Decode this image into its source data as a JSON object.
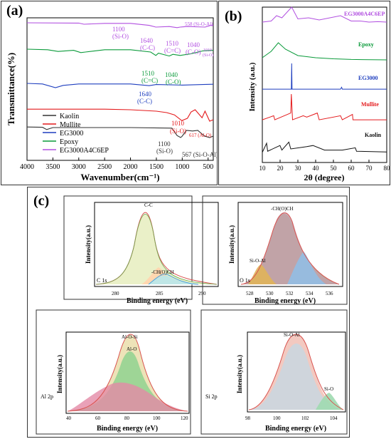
{
  "panel_a": {
    "label": "(a)",
    "chart_data": {
      "type": "line",
      "xlabel": "Wavenumber(cm⁻¹)",
      "ylabel": "Transmittance(%)",
      "xlim": [
        4000,
        400
      ],
      "x_ticks": [
        "4000",
        "3500",
        "3000",
        "2500",
        "2000",
        "1500",
        "1000",
        "500"
      ],
      "series": [
        {
          "name": "Kaolin",
          "color": "#333333",
          "points": [
            [
              4000,
              0.92
            ],
            [
              3700,
              0.91
            ],
            [
              3620,
              0.83
            ],
            [
              3500,
              0.9
            ],
            [
              2000,
              0.9
            ],
            [
              1200,
              0.88
            ],
            [
              1100,
              0.62
            ],
            [
              1030,
              0.55
            ],
            [
              1000,
              0.6
            ],
            [
              920,
              0.8
            ],
            [
              800,
              0.78
            ],
            [
              700,
              0.8
            ],
            [
              567,
              0.6
            ],
            [
              470,
              0.55
            ],
            [
              400,
              0.6
            ]
          ]
        },
        {
          "name": "Mullite",
          "color": "#e41a1c",
          "points": [
            [
              4000,
              0.92
            ],
            [
              2500,
              0.92
            ],
            [
              2000,
              0.9
            ],
            [
              1500,
              0.85
            ],
            [
              1300,
              0.8
            ],
            [
              1150,
              0.72
            ],
            [
              1010,
              0.52
            ],
            [
              900,
              0.6
            ],
            [
              830,
              0.82
            ],
            [
              750,
              0.9
            ],
            [
              617,
              0.62
            ],
            [
              560,
              0.85
            ],
            [
              470,
              0.5
            ],
            [
              400,
              0.55
            ]
          ]
        },
        {
          "name": "EG3000",
          "color": "#1f3fbf",
          "points": [
            [
              4000,
              0.9
            ],
            [
              3700,
              0.88
            ],
            [
              3450,
              0.75
            ],
            [
              3300,
              0.83
            ],
            [
              3000,
              0.88
            ],
            [
              2000,
              0.88
            ],
            [
              1640,
              0.82
            ],
            [
              1500,
              0.86
            ],
            [
              1000,
              0.84
            ],
            [
              600,
              0.86
            ],
            [
              400,
              0.87
            ]
          ]
        },
        {
          "name": "Epoxy",
          "color": "#0a9a3a",
          "points": [
            [
              4000,
              0.9
            ],
            [
              3600,
              0.88
            ],
            [
              3400,
              0.82
            ],
            [
              3100,
              0.86
            ],
            [
              2960,
              0.78
            ],
            [
              2870,
              0.8
            ],
            [
              2500,
              0.88
            ],
            [
              2000,
              0.88
            ],
            [
              1610,
              0.8
            ],
            [
              1510,
              0.68
            ],
            [
              1460,
              0.76
            ],
            [
              1250,
              0.66
            ],
            [
              1180,
              0.72
            ],
            [
              1040,
              0.68
            ],
            [
              830,
              0.74
            ],
            [
              600,
              0.84
            ],
            [
              400,
              0.86
            ]
          ]
        },
        {
          "name": "EG3000A4C6EP",
          "color": "#b14fe0",
          "points": [
            [
              4000,
              0.95
            ],
            [
              3000,
              0.94
            ],
            [
              2900,
              0.9
            ],
            [
              2500,
              0.93
            ],
            [
              2000,
              0.93
            ],
            [
              1640,
              0.86
            ],
            [
              1510,
              0.8
            ],
            [
              1250,
              0.82
            ],
            [
              1100,
              0.78
            ],
            [
              1040,
              0.8
            ],
            [
              900,
              0.82
            ],
            [
              558,
              0.8
            ],
            [
              450,
              0.86
            ],
            [
              400,
              0.87
            ]
          ]
        }
      ],
      "annotations": [
        "1100",
        "(Si-O)",
        "1640",
        "(C-C)",
        "1510",
        "(C=C)",
        "1040",
        "(C-O)",
        "558 (Si-O-Al)",
        "1010",
        "(Si-O)",
        "1510",
        "(C=C)",
        "1040",
        "(C-O)",
        "1640",
        "(C-C)",
        "1010",
        "(Si-O)",
        "617 (Al-O)",
        "1100",
        "(Si-O)",
        "567 (Si-O-Al)"
      ]
    }
  },
  "panel_b": {
    "label": "(b)",
    "chart_data": {
      "type": "line",
      "xlabel": "2θ (degree)",
      "ylabel": "Intensity (a.u.)",
      "xlim": [
        10,
        80
      ],
      "x_ticks": [
        "10",
        "20",
        "30",
        "40",
        "50",
        "60",
        "70",
        "80"
      ],
      "series": [
        {
          "name": "EG3000A4C6EP",
          "color": "#b14fe0",
          "points": [
            [
              10,
              0.3
            ],
            [
              15,
              0.35
            ],
            [
              18,
              0.6
            ],
            [
              21,
              0.5
            ],
            [
              26.5,
              1.0
            ],
            [
              30,
              0.45
            ],
            [
              36,
              0.5
            ],
            [
              42,
              0.4
            ],
            [
              54,
              0.6
            ],
            [
              60,
              0.35
            ],
            [
              65,
              0.35
            ],
            [
              70,
              0.3
            ],
            [
              75,
              0.32
            ],
            [
              80,
              0.3
            ]
          ]
        },
        {
          "name": "Epoxy",
          "color": "#0a9a3a",
          "points": [
            [
              10,
              0.2
            ],
            [
              15,
              0.5
            ],
            [
              19,
              0.9
            ],
            [
              23,
              0.6
            ],
            [
              30,
              0.3
            ],
            [
              40,
              0.2
            ],
            [
              50,
              0.15
            ],
            [
              60,
              0.12
            ],
            [
              80,
              0.1
            ]
          ]
        },
        {
          "name": "EG3000",
          "color": "#1f3fbf",
          "points": [
            [
              10,
              0.05
            ],
            [
              25,
              0.05
            ],
            [
              26.3,
              0.05
            ],
            [
              26.5,
              1.0
            ],
            [
              26.7,
              0.05
            ],
            [
              54,
              0.05
            ],
            [
              54.6,
              0.12
            ],
            [
              55,
              0.05
            ],
            [
              80,
              0.05
            ]
          ]
        },
        {
          "name": "Mullite",
          "color": "#e41a1c",
          "points": [
            [
              10,
              0.05
            ],
            [
              16.4,
              0.2
            ],
            [
              17,
              0.05
            ],
            [
              26,
              0.3
            ],
            [
              26.3,
              1.0
            ],
            [
              27,
              0.05
            ],
            [
              33,
              0.2
            ],
            [
              35,
              0.15
            ],
            [
              40.9,
              0.3
            ],
            [
              42,
              0.05
            ],
            [
              54,
              0.2
            ],
            [
              55,
              0.05
            ],
            [
              60.7,
              0.25
            ],
            [
              61,
              0.05
            ],
            [
              80,
              0.05
            ]
          ]
        },
        {
          "name": "Kaolin",
          "color": "#111111",
          "points": [
            [
              10,
              0.1
            ],
            [
              12.4,
              0.5
            ],
            [
              13,
              0.15
            ],
            [
              19.9,
              0.4
            ],
            [
              21,
              0.2
            ],
            [
              24.9,
              0.55
            ],
            [
              26,
              0.25
            ],
            [
              35,
              0.35
            ],
            [
              38.5,
              0.4
            ],
            [
              45,
              0.2
            ],
            [
              55,
              0.2
            ],
            [
              62.3,
              0.3
            ],
            [
              63,
              0.15
            ],
            [
              80,
              0.12
            ]
          ]
        }
      ]
    }
  },
  "panel_c": {
    "label": "(c)",
    "subplots": [
      {
        "core": "C 1s",
        "xlabel": "Binding energy (eV)",
        "ylabel": "Intensity(a.u.)",
        "x_ticks": [
          "280",
          "285",
          "290"
        ],
        "xlim": [
          280,
          290
        ],
        "peaks": [
          "C-C",
          "-CH(O)CH"
        ]
      },
      {
        "core": "O 1s",
        "xlabel": "Binding energy (eV)",
        "ylabel": "Intensity(a.u.)",
        "x_ticks": [
          "528",
          "530",
          "532",
          "534",
          "536"
        ],
        "xlim": [
          527,
          537
        ],
        "peaks": [
          "-CH(O)CH",
          "Si-O-Al"
        ]
      },
      {
        "core": "Al 2p",
        "xlabel": "Binding energy (eV)",
        "ylabel": "Intensity(a.u.)",
        "x_ticks": [
          "40",
          "60",
          "80",
          "100",
          "120"
        ],
        "xlim": [
          40,
          120
        ],
        "peaks": [
          "Al-O-Si",
          "Al-O"
        ]
      },
      {
        "core": "Si 2p",
        "xlabel": "Binding energy (eV)",
        "ylabel": "Intensity(a.u.)",
        "x_ticks": [
          "98",
          "100",
          "102",
          "104"
        ],
        "xlim": [
          98,
          105
        ],
        "peaks": [
          "Si-O-Al",
          "Si-O"
        ]
      }
    ]
  }
}
